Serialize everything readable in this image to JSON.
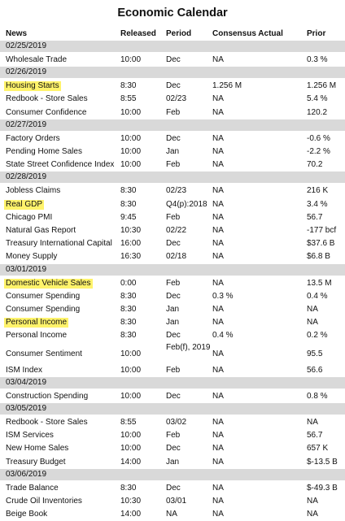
{
  "title": "Economic Calendar",
  "headers": {
    "news": "News",
    "released": "Released",
    "period": "Period",
    "consensus_actual": "Consensus Actual",
    "prior": "Prior"
  },
  "highlight_color": "#fff36b",
  "rows": [
    {
      "type": "date",
      "date": "02/25/2019"
    },
    {
      "type": "event",
      "news": "Wholesale Trade",
      "released": "10:00",
      "period": "Dec",
      "consensus": "NA",
      "prior": "0.3 %",
      "highlight": false
    },
    {
      "type": "date",
      "date": "02/26/2019"
    },
    {
      "type": "event",
      "news": "Housing Starts",
      "released": "8:30",
      "period": "Dec",
      "consensus": "1.256 M",
      "prior": "1.256 M",
      "highlight": true
    },
    {
      "type": "event",
      "news": "Redbook - Store Sales",
      "released": "8:55",
      "period": "02/23",
      "consensus": "NA",
      "prior": "5.4 %",
      "highlight": false
    },
    {
      "type": "event",
      "news": "Consumer Confidence",
      "released": "10:00",
      "period": "Feb",
      "consensus": "NA",
      "prior": "120.2",
      "highlight": false
    },
    {
      "type": "date",
      "date": "02/27/2019"
    },
    {
      "type": "event",
      "news": "Factory Orders",
      "released": "10:00",
      "period": "Dec",
      "consensus": "NA",
      "prior": "-0.6 %",
      "highlight": false
    },
    {
      "type": "event",
      "news": "Pending Home Sales",
      "released": "10:00",
      "period": "Jan",
      "consensus": "NA",
      "prior": "-2.2 %",
      "highlight": false
    },
    {
      "type": "event",
      "news": "State Street Confidence Index",
      "released": "10:00",
      "period": "Feb",
      "consensus": "NA",
      "prior": "70.2",
      "highlight": false
    },
    {
      "type": "date",
      "date": "02/28/2019"
    },
    {
      "type": "event",
      "news": "Jobless Claims",
      "released": "8:30",
      "period": "02/23",
      "consensus": "NA",
      "prior": "216 K",
      "highlight": false
    },
    {
      "type": "event",
      "news": "Real GDP",
      "released": "8:30",
      "period": "Q4(p):2018",
      "consensus": "NA",
      "prior": "3.4 %",
      "highlight": true
    },
    {
      "type": "event",
      "news": "Chicago PMI",
      "released": "9:45",
      "period": "Feb",
      "consensus": "NA",
      "prior": "56.7",
      "highlight": false
    },
    {
      "type": "event",
      "news": "Natural Gas Report",
      "released": "10:30",
      "period": "02/22",
      "consensus": "NA",
      "prior": "-177 bcf",
      "highlight": false
    },
    {
      "type": "event",
      "news": "Treasury International Capital",
      "released": "16:00",
      "period": "Dec",
      "consensus": "NA",
      "prior": "$37.6 B",
      "highlight": false
    },
    {
      "type": "event",
      "news": "Money Supply",
      "released": "16:30",
      "period": "02/18",
      "consensus": "NA",
      "prior": "$6.8 B",
      "highlight": false
    },
    {
      "type": "date",
      "date": "03/01/2019"
    },
    {
      "type": "event",
      "news": "Domestic Vehicle Sales",
      "released": "0:00",
      "period": "Feb",
      "consensus": "NA",
      "prior": "13.5 M",
      "highlight": true
    },
    {
      "type": "event",
      "news": "Consumer Spending",
      "released": "8:30",
      "period": "Dec",
      "consensus": "0.3 %",
      "prior": "0.4 %",
      "highlight": false
    },
    {
      "type": "event",
      "news": "Consumer Spending",
      "released": "8:30",
      "period": "Jan",
      "consensus": "NA",
      "prior": "NA",
      "highlight": false
    },
    {
      "type": "event",
      "news": "Personal Income",
      "released": "8:30",
      "period": "Jan",
      "consensus": "NA",
      "prior": "NA",
      "highlight": true
    },
    {
      "type": "event",
      "news": "Personal Income",
      "released": "8:30",
      "period": "Dec",
      "consensus": "0.4 %",
      "prior": "0.2 %",
      "highlight": false
    },
    {
      "type": "event",
      "news": "Consumer Sentiment",
      "released": "10:00",
      "period": "Feb(f), 2019",
      "consensus": "NA",
      "prior": "95.5",
      "highlight": false,
      "tall": true
    },
    {
      "type": "event",
      "news": "ISM Index",
      "released": "10:00",
      "period": "Feb",
      "consensus": "NA",
      "prior": "56.6",
      "highlight": false
    },
    {
      "type": "date",
      "date": "03/04/2019"
    },
    {
      "type": "event",
      "news": "Construction Spending",
      "released": "10:00",
      "period": "Dec",
      "consensus": "NA",
      "prior": "0.8 %",
      "highlight": false
    },
    {
      "type": "date",
      "date": "03/05/2019"
    },
    {
      "type": "event",
      "news": "Redbook - Store Sales",
      "released": "8:55",
      "period": "03/02",
      "consensus": "NA",
      "prior": "NA",
      "highlight": false
    },
    {
      "type": "event",
      "news": "ISM Services",
      "released": "10:00",
      "period": "Feb",
      "consensus": "NA",
      "prior": "56.7",
      "highlight": false
    },
    {
      "type": "event",
      "news": "New Home Sales",
      "released": "10:00",
      "period": "Dec",
      "consensus": "NA",
      "prior": "657 K",
      "highlight": false
    },
    {
      "type": "event",
      "news": "Treasury Budget",
      "released": "14:00",
      "period": "Jan",
      "consensus": "NA",
      "prior": "$-13.5 B",
      "highlight": false
    },
    {
      "type": "date",
      "date": "03/06/2019"
    },
    {
      "type": "event",
      "news": "Trade Balance",
      "released": "8:30",
      "period": "Dec",
      "consensus": "NA",
      "prior": "$-49.3 B",
      "highlight": false
    },
    {
      "type": "event",
      "news": "Crude Oil Inventories",
      "released": "10:30",
      "period": "03/01",
      "consensus": "NA",
      "prior": "NA",
      "highlight": false
    },
    {
      "type": "event",
      "news": "Beige Book",
      "released": "14:00",
      "period": "NA",
      "consensus": "NA",
      "prior": "NA",
      "highlight": false
    }
  ]
}
